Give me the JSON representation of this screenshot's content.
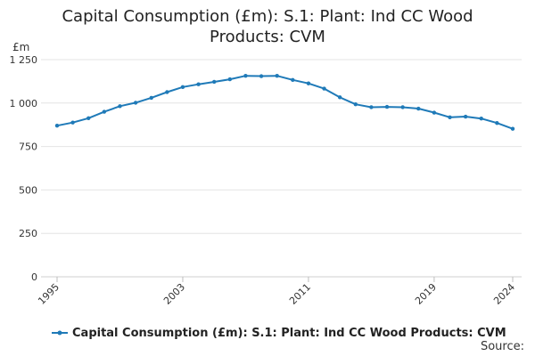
{
  "chart_data": {
    "type": "line",
    "title": "Capital Consumption (£m): S.1: Plant: Ind CC Wood Products: CVM",
    "ylabel": "£m",
    "xlabel": "",
    "ylim": [
      0,
      1250
    ],
    "xlim": [
      1995,
      2024
    ],
    "yticks": [
      0,
      250,
      500,
      750,
      1000,
      1250
    ],
    "ytick_labels": [
      "0",
      "250",
      "500",
      "750",
      "1 000",
      "1 250"
    ],
    "xticks": [
      1995,
      2003,
      2011,
      2019,
      2024
    ],
    "xtick_labels": [
      "1995",
      "2003",
      "2011",
      "2019",
      "2024"
    ],
    "grid": true,
    "legend_position": "bottom-left",
    "series": [
      {
        "name": "Capital Consumption (£m): S.1: Plant: Ind CC Wood Products: CVM",
        "color": "#1f7ab8",
        "x": [
          1995,
          1996,
          1997,
          1998,
          1999,
          2000,
          2001,
          2002,
          2003,
          2004,
          2005,
          2006,
          2007,
          2008,
          2009,
          2010,
          2011,
          2012,
          2013,
          2014,
          2015,
          2016,
          2017,
          2018,
          2019,
          2020,
          2021,
          2022,
          2023,
          2024
        ],
        "values": [
          870,
          888,
          913,
          950,
          982,
          1002,
          1030,
          1063,
          1092,
          1108,
          1122,
          1137,
          1157,
          1155,
          1157,
          1133,
          1113,
          1083,
          1033,
          993,
          976,
          978,
          976,
          968,
          945,
          918,
          922,
          911,
          885,
          852
        ]
      }
    ]
  },
  "source_label": "Source:"
}
